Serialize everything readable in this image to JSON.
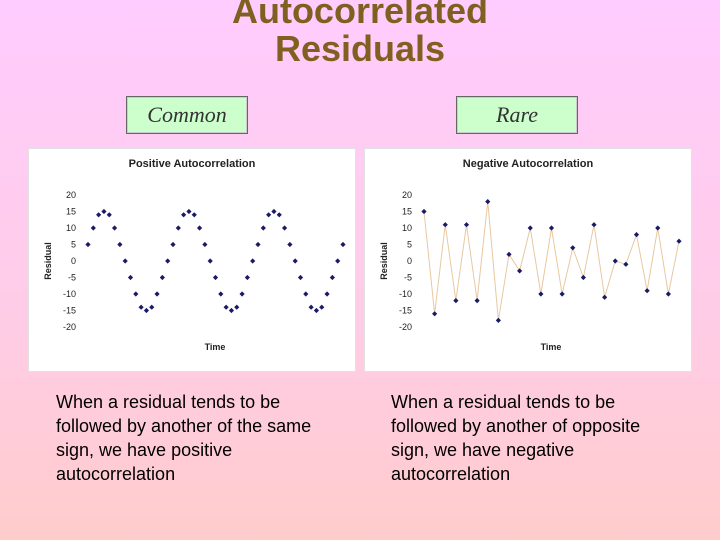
{
  "slide": {
    "title_line1": "Autocorrelated",
    "title_line2": "Residuals",
    "left_label": "Common",
    "right_label": "Rare",
    "left_text": "When a residual tends to be followed by another of the same sign, we have positive autocorrelation",
    "right_text": "When a residual tends to be followed by another of opposite sign, we have negative autocorrelation"
  },
  "colors": {
    "title": "#806020",
    "label_box": "#ccffcc",
    "marker": "#1a1a66",
    "line": "#e8c8a0"
  },
  "chart_data": [
    {
      "type": "scatter",
      "title": "Positive Autocorrelation",
      "xlabel": "Time",
      "ylabel": "Residual",
      "ylim": [
        -20,
        20
      ],
      "yticks": [
        20,
        15,
        10,
        5,
        0,
        -5,
        -10,
        -15,
        -20
      ],
      "connect_line": false,
      "y": [
        5,
        10,
        14,
        15,
        14,
        10,
        5,
        0,
        -5,
        -10,
        -14,
        -15,
        -14,
        -10,
        -5,
        0,
        5,
        10,
        14,
        15,
        14,
        10,
        5,
        0,
        -5,
        -10,
        -14,
        -15,
        -14,
        -10,
        -5,
        0,
        5,
        10,
        14,
        15,
        14,
        10,
        5,
        0,
        -5,
        -10,
        -14,
        -15,
        -14,
        -10,
        -5,
        0,
        5
      ]
    },
    {
      "type": "line",
      "title": "Negative Autocorrelation",
      "xlabel": "Time",
      "ylabel": "Residual",
      "ylim": [
        -20,
        20
      ],
      "yticks": [
        20,
        15,
        10,
        5,
        0,
        -5,
        -10,
        -15,
        -20
      ],
      "connect_line": true,
      "y": [
        15,
        -16,
        11,
        -12,
        11,
        -12,
        18,
        -18,
        2,
        -3,
        10,
        -10,
        10,
        -10,
        4,
        -5,
        11,
        -11,
        0,
        -1,
        8,
        -9,
        10,
        -10,
        6
      ]
    }
  ]
}
